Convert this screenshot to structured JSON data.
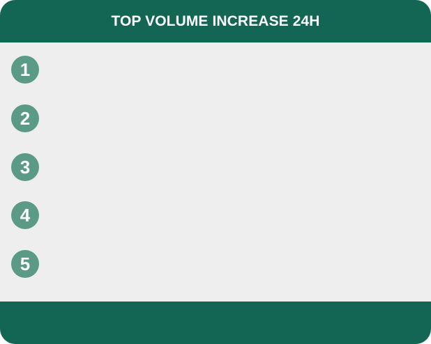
{
  "header": {
    "title": "TOP VOLUME INCREASE 24H"
  },
  "ranks": [
    {
      "number": "1"
    },
    {
      "number": "2"
    },
    {
      "number": "3"
    },
    {
      "number": "4"
    },
    {
      "number": "5"
    }
  ],
  "colors": {
    "header_bg": "#126653",
    "body_bg": "#eeeeee",
    "badge_bg": "#5a9a86",
    "badge_text": "#ffffff"
  }
}
